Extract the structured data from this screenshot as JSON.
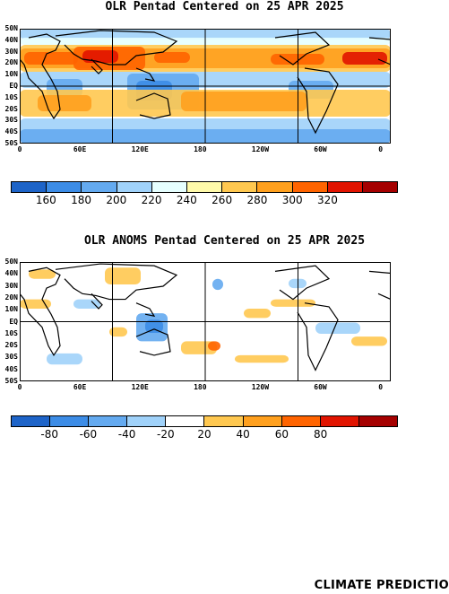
{
  "olr_title": "OLR Pentad Centered on 25 APR 2025",
  "anom_title": "OLR ANOMS Pentad Centered on 25 APR 2025",
  "lat_labels": [
    "50N",
    "40N",
    "30N",
    "20N",
    "10N",
    "EQ",
    "10S",
    "20S",
    "30S",
    "40S",
    "50S"
  ],
  "lon_labels": [
    "0",
    "60E",
    "120E",
    "180",
    "120W",
    "60W",
    "0"
  ],
  "olr_colorbar": {
    "colors": [
      "#1e64c8",
      "#3c8ce6",
      "#64aaf0",
      "#a0d2fa",
      "#e6ffff",
      "#fffaaa",
      "#ffc850",
      "#ffa01e",
      "#ff6400",
      "#e11400",
      "#a50000"
    ],
    "labels": [
      "160",
      "180",
      "200",
      "220",
      "240",
      "260",
      "280",
      "300",
      "320"
    ]
  },
  "anom_colorbar": {
    "colors": [
      "#1e64c8",
      "#3c8ce6",
      "#64aaf0",
      "#a0d2fa",
      "#ffffff",
      "#ffc850",
      "#ffa01e",
      "#ff6400",
      "#e11400",
      "#a50000"
    ],
    "labels": [
      "-80",
      "-60",
      "-40",
      "-20",
      "20",
      "40",
      "60",
      "80"
    ]
  },
  "footer": "CLIMATE PREDICTIO"
}
